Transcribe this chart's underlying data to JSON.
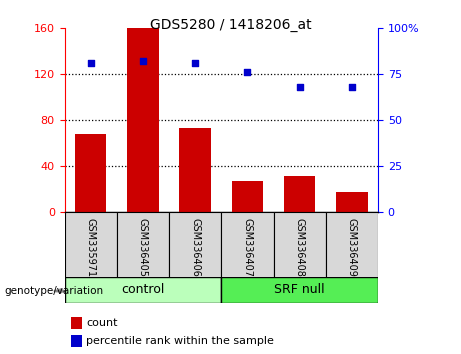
{
  "title": "GDS5280 / 1418206_at",
  "samples": [
    "GSM335971",
    "GSM336405",
    "GSM336406",
    "GSM336407",
    "GSM336408",
    "GSM336409"
  ],
  "counts": [
    68,
    160,
    73,
    27,
    32,
    18
  ],
  "percentile_ranks": [
    81,
    82,
    81,
    76,
    68,
    68
  ],
  "bar_color": "#cc0000",
  "dot_color": "#0000cc",
  "left_ylim": [
    0,
    160
  ],
  "right_ylim": [
    0,
    100
  ],
  "left_yticks": [
    0,
    40,
    80,
    120,
    160
  ],
  "right_yticks": [
    0,
    25,
    50,
    75,
    100
  ],
  "right_yticklabels": [
    "0",
    "25",
    "50",
    "75",
    "100%"
  ],
  "hlines": [
    40,
    80,
    120
  ],
  "control_color": "#bbffbb",
  "srfnull_color": "#55ee55",
  "sample_box_color": "#d8d8d8",
  "label_count": "count",
  "label_pct": "percentile rank within the sample",
  "genotype_label": "genotype/variation",
  "control_label": "control",
  "srfnull_label": "SRF null",
  "n_control": 3,
  "n_srfnull": 3
}
